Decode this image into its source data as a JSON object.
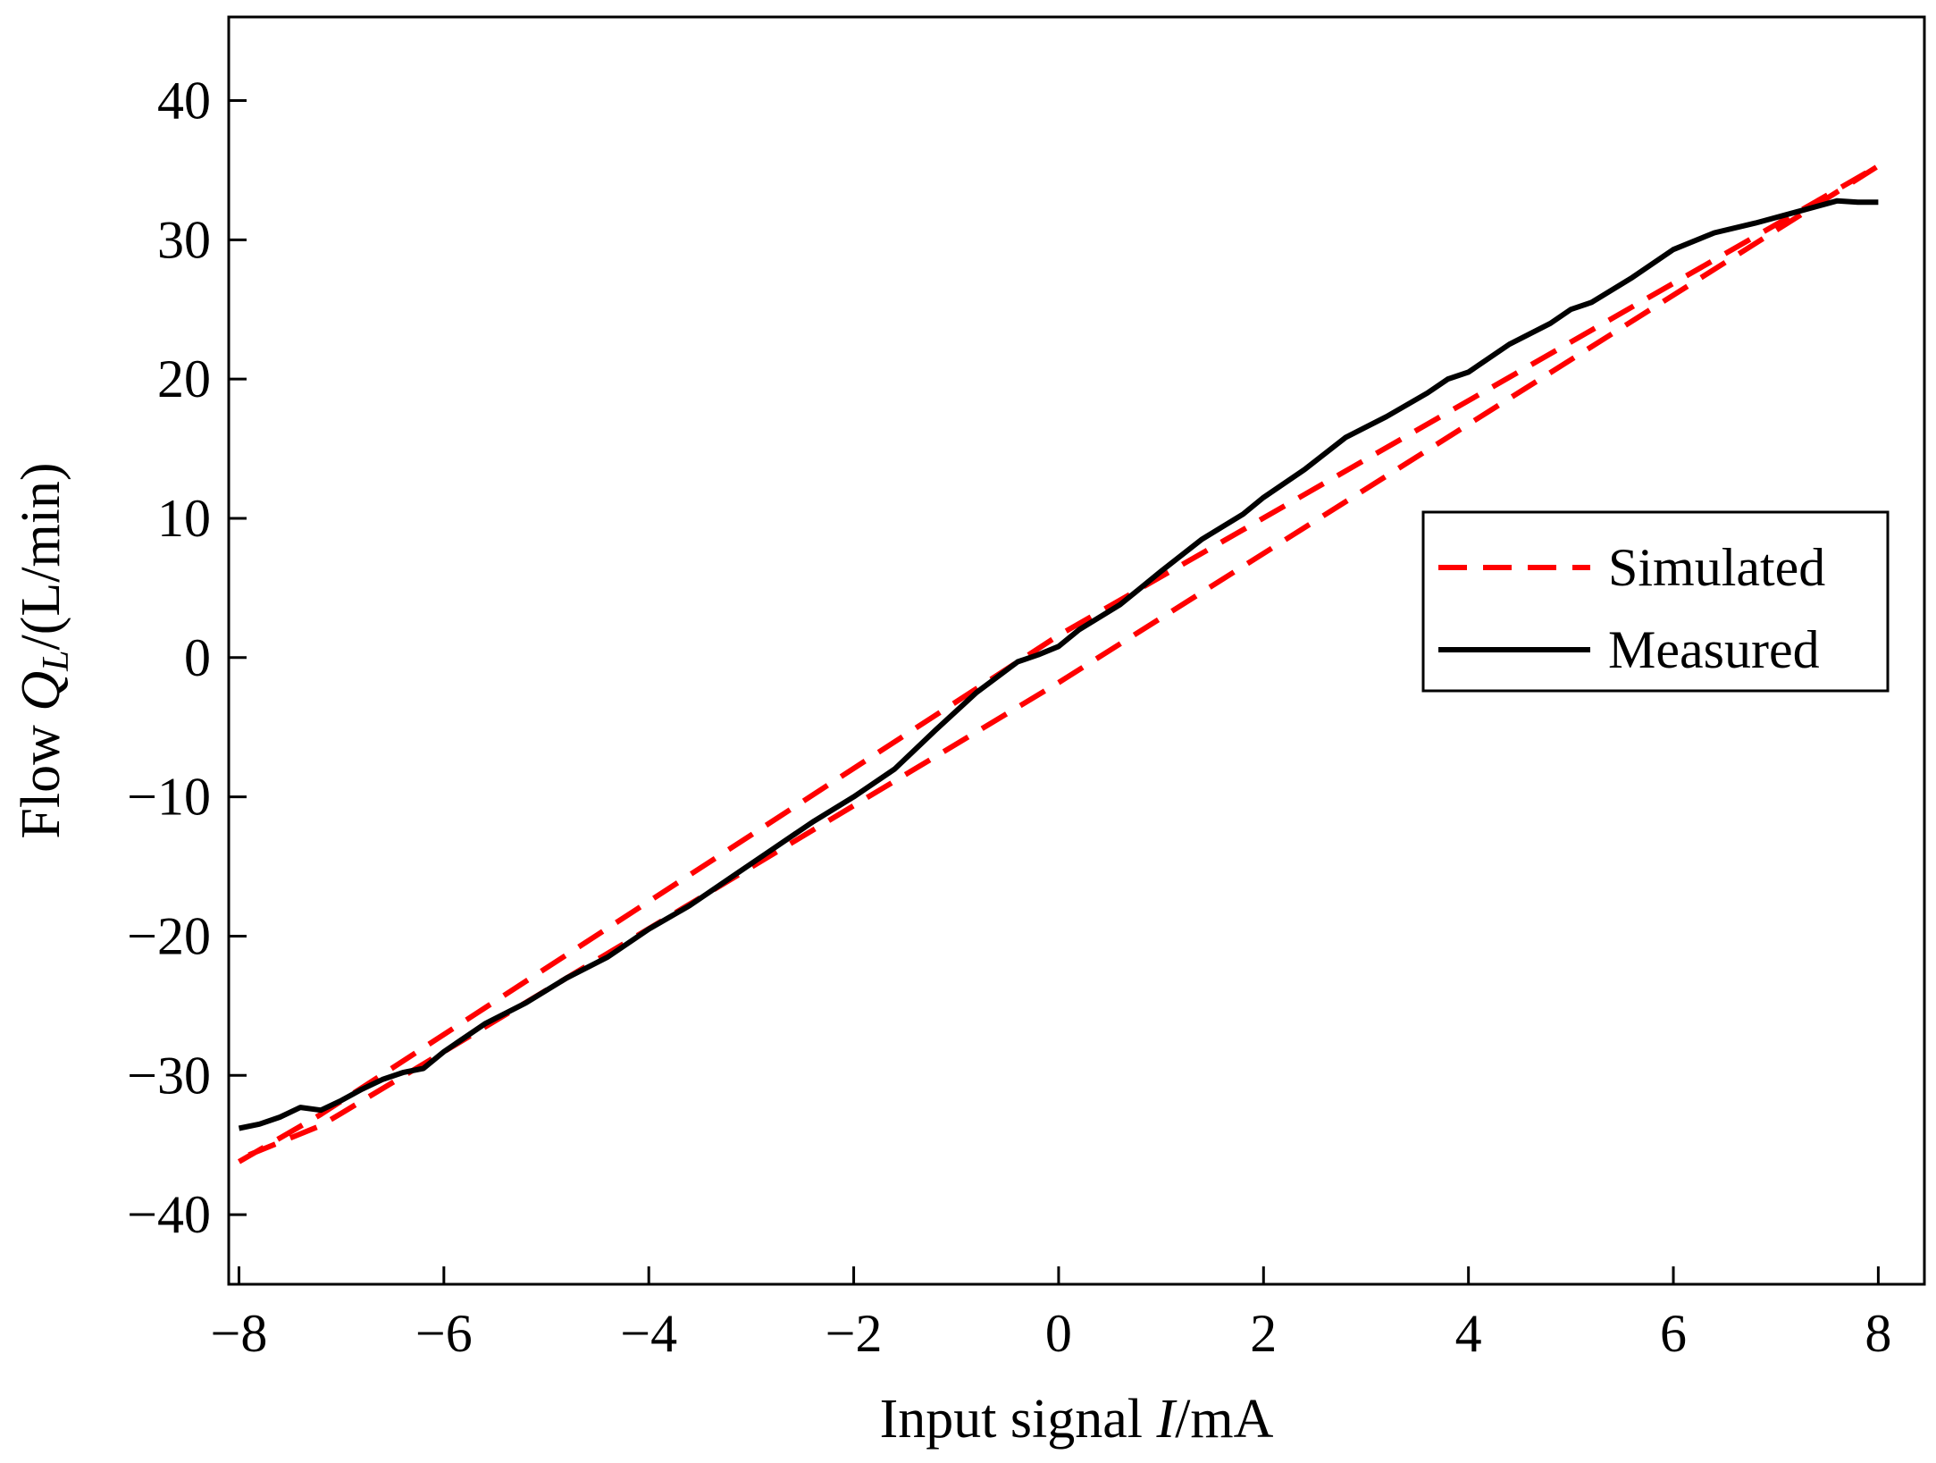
{
  "chart_data": {
    "type": "line",
    "title": "",
    "xlabel": {
      "prefix": "Input signal ",
      "var": "I",
      "suffix": "/mA"
    },
    "ylabel": {
      "prefix": "Flow ",
      "var": "Q",
      "sub": "L",
      "suffix": "/(L/min)"
    },
    "xlim": [
      -8.1,
      8.45
    ],
    "ylim": [
      -45,
      46
    ],
    "xticks": [
      -8,
      -6,
      -4,
      -2,
      0,
      2,
      4,
      6,
      8
    ],
    "yticks": [
      -40,
      -30,
      -20,
      -10,
      0,
      10,
      20,
      30,
      40
    ],
    "xtick_labels": [
      "−8",
      "−6",
      "−4",
      "−2",
      "0",
      "2",
      "4",
      "6",
      "8"
    ],
    "ytick_labels": [
      "−40",
      "−30",
      "−20",
      "−10",
      "0",
      "10",
      "20",
      "30",
      "40"
    ],
    "grid": false,
    "legend_position": "right",
    "series": [
      {
        "name": "Simulated",
        "color": "#ff0000",
        "style": "dashed",
        "x": [
          -8.0,
          -7.2,
          0.0,
          8.0,
          0.0,
          -7.2,
          -8.0
        ],
        "y": [
          -36.2,
          -32.8,
          1.6,
          35.3,
          -1.8,
          -33.6,
          -36.0
        ]
      },
      {
        "name": "Measured",
        "color": "#000000",
        "style": "solid",
        "x": [
          -8.0,
          -7.8,
          -7.6,
          -7.4,
          -7.2,
          -7.0,
          -6.8,
          -6.6,
          -6.4,
          -6.2,
          -6.0,
          -5.6,
          -5.2,
          -4.8,
          -4.4,
          -4.0,
          -3.6,
          -3.2,
          -2.8,
          -2.4,
          -2.0,
          -1.6,
          -1.2,
          -0.8,
          -0.4,
          -0.2,
          0.0,
          0.2,
          0.6,
          1.0,
          1.4,
          1.8,
          2.0,
          2.4,
          2.8,
          3.2,
          3.6,
          3.8,
          4.0,
          4.4,
          4.8,
          5.0,
          5.2,
          5.6,
          6.0,
          6.4,
          6.8,
          7.2,
          7.6,
          7.8,
          8.0
        ],
        "y": [
          -33.8,
          -33.5,
          -33.0,
          -32.3,
          -32.5,
          -31.8,
          -31.0,
          -30.3,
          -29.8,
          -29.5,
          -28.3,
          -26.3,
          -24.8,
          -23.0,
          -21.5,
          -19.5,
          -17.8,
          -15.8,
          -13.8,
          -11.8,
          -10.0,
          -8.0,
          -5.2,
          -2.5,
          -0.3,
          0.2,
          0.8,
          2.0,
          3.8,
          6.2,
          8.5,
          10.3,
          11.5,
          13.5,
          15.8,
          17.3,
          19.0,
          20.0,
          20.5,
          22.5,
          24.0,
          25.0,
          25.5,
          27.3,
          29.3,
          30.5,
          31.2,
          32.0,
          32.8,
          32.7,
          32.7
        ]
      }
    ]
  }
}
